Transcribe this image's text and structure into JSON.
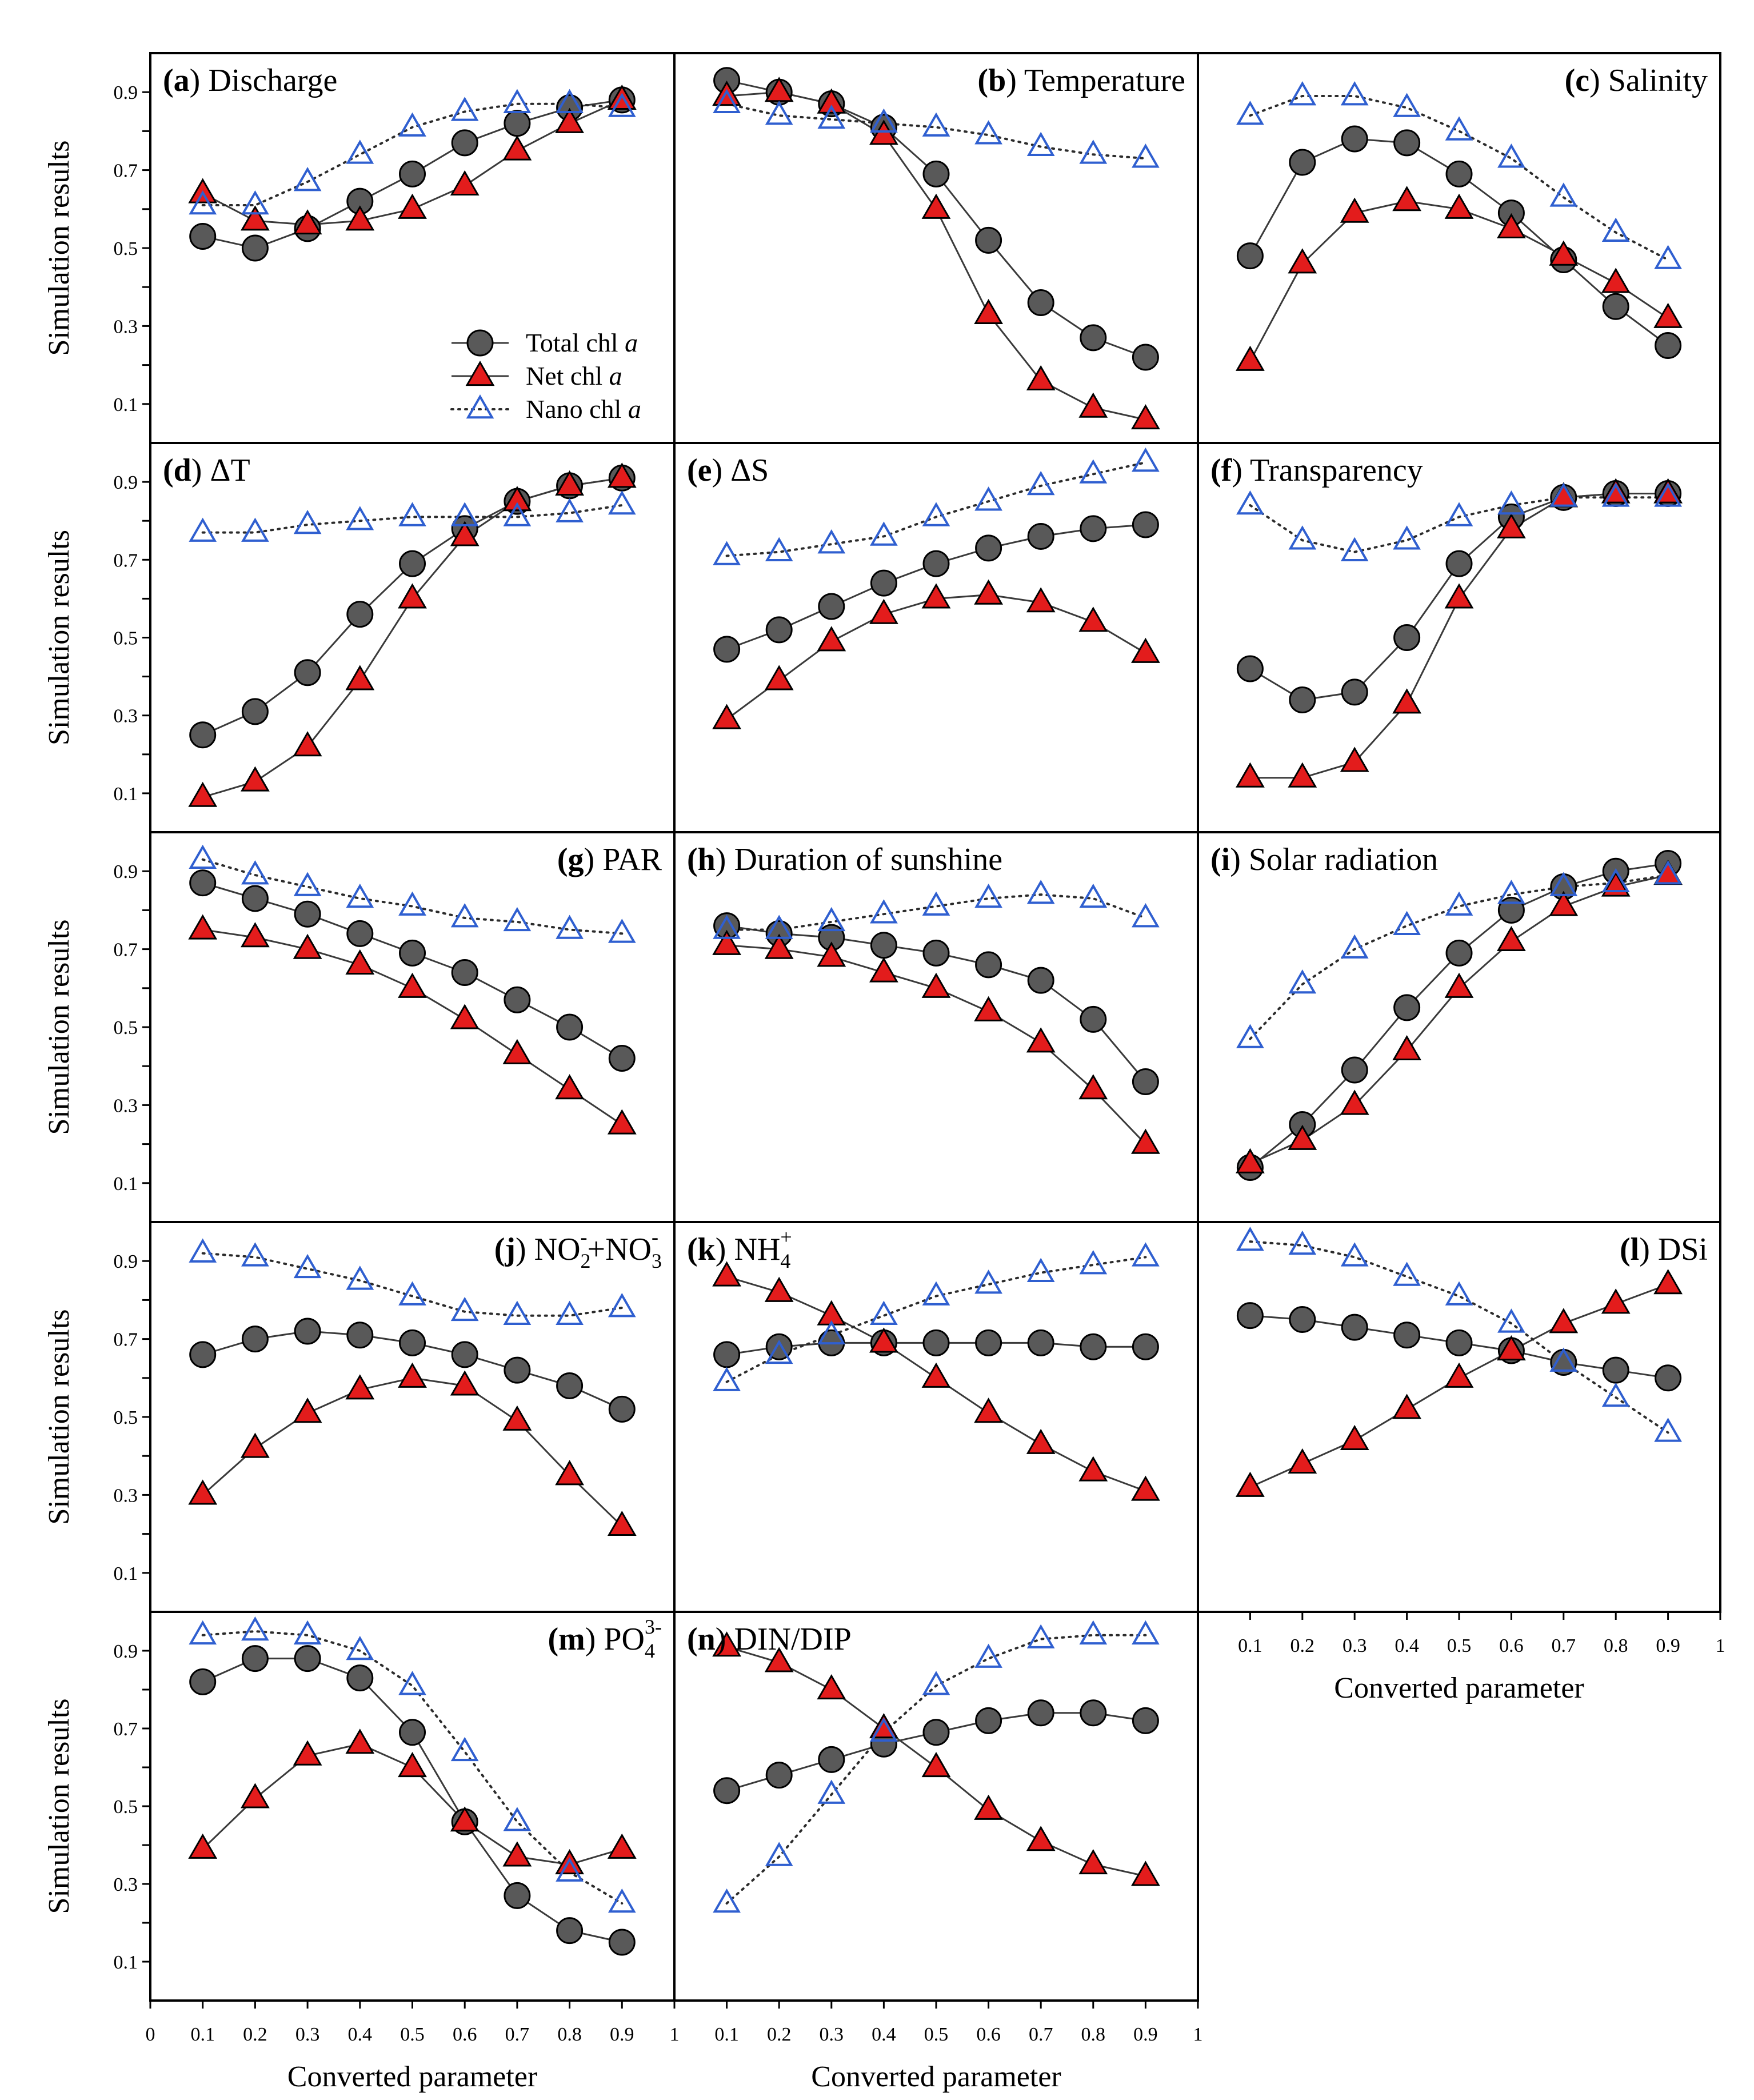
{
  "chart_data": {
    "type": "line",
    "x": [
      0.1,
      0.2,
      0.3,
      0.4,
      0.5,
      0.6,
      0.7,
      0.8,
      0.9
    ],
    "xlabel": "Converted parameter",
    "ylabel": "Simulation results",
    "xlim": [
      0,
      1
    ],
    "ylim": [
      0,
      1
    ],
    "xticks": [
      "0",
      "0.1",
      "0.2",
      "0.3",
      "0.4",
      "0.5",
      "0.6",
      "0.7",
      "0.8",
      "0.9",
      "1"
    ],
    "yticks": [
      "0.1",
      "0.3",
      "0.5",
      "0.7",
      "0.9"
    ],
    "legend": {
      "placement": "bottom-right of panel (a)",
      "entries": [
        {
          "key": "total",
          "prefix": "Total chl ",
          "italic": "a"
        },
        {
          "key": "net",
          "prefix": "Net chl ",
          "italic": "a"
        },
        {
          "key": "nano",
          "prefix": "Nano chl ",
          "italic": "a"
        }
      ]
    },
    "panels": [
      {
        "letter": "a",
        "name": "Discharge",
        "align": "left",
        "total": [
          0.53,
          0.5,
          0.55,
          0.62,
          0.69,
          0.77,
          0.82,
          0.86,
          0.88
        ],
        "net": [
          0.64,
          0.57,
          0.56,
          0.57,
          0.6,
          0.66,
          0.75,
          0.82,
          0.88
        ],
        "nano": [
          0.61,
          0.61,
          0.67,
          0.74,
          0.81,
          0.85,
          0.87,
          0.87,
          0.86
        ]
      },
      {
        "letter": "b",
        "name": "Temperature",
        "align": "right",
        "total": [
          0.93,
          0.9,
          0.87,
          0.81,
          0.69,
          0.52,
          0.36,
          0.27,
          0.22
        ],
        "net": [
          0.89,
          0.9,
          0.87,
          0.79,
          0.6,
          0.33,
          0.16,
          0.09,
          0.06
        ],
        "nano": [
          0.87,
          0.84,
          0.83,
          0.82,
          0.81,
          0.79,
          0.76,
          0.74,
          0.73
        ]
      },
      {
        "letter": "c",
        "name": "Salinity",
        "align": "right",
        "total": [
          0.48,
          0.72,
          0.78,
          0.77,
          0.69,
          0.59,
          0.47,
          0.35,
          0.25
        ],
        "net": [
          0.21,
          0.46,
          0.59,
          0.62,
          0.6,
          0.55,
          0.48,
          0.41,
          0.32
        ],
        "nano": [
          0.84,
          0.89,
          0.89,
          0.86,
          0.8,
          0.73,
          0.63,
          0.54,
          0.47
        ]
      },
      {
        "letter": "d",
        "name": "ΔT",
        "align": "left",
        "total": [
          0.25,
          0.31,
          0.41,
          0.56,
          0.69,
          0.78,
          0.85,
          0.89,
          0.91
        ],
        "net": [
          0.09,
          0.13,
          0.22,
          0.39,
          0.6,
          0.76,
          0.85,
          0.89,
          0.91
        ],
        "nano": [
          0.77,
          0.77,
          0.79,
          0.8,
          0.81,
          0.81,
          0.81,
          0.82,
          0.84
        ]
      },
      {
        "letter": "e",
        "name": "ΔS",
        "align": "left",
        "total": [
          0.47,
          0.52,
          0.58,
          0.64,
          0.69,
          0.73,
          0.76,
          0.78,
          0.79
        ],
        "net": [
          0.29,
          0.39,
          0.49,
          0.56,
          0.6,
          0.61,
          0.59,
          0.54,
          0.46
        ],
        "nano": [
          0.71,
          0.72,
          0.74,
          0.76,
          0.81,
          0.85,
          0.89,
          0.92,
          0.95
        ]
      },
      {
        "letter": "f",
        "name": "Transparency",
        "align": "left",
        "total": [
          0.42,
          0.34,
          0.36,
          0.5,
          0.69,
          0.81,
          0.86,
          0.87,
          0.87
        ],
        "net": [
          0.14,
          0.14,
          0.18,
          0.33,
          0.6,
          0.78,
          0.86,
          0.87,
          0.87
        ],
        "nano": [
          0.84,
          0.75,
          0.72,
          0.75,
          0.81,
          0.84,
          0.86,
          0.86,
          0.86
        ]
      },
      {
        "letter": "g",
        "name": "PAR",
        "align": "right",
        "total": [
          0.87,
          0.83,
          0.79,
          0.74,
          0.69,
          0.64,
          0.57,
          0.5,
          0.42
        ],
        "net": [
          0.75,
          0.73,
          0.7,
          0.66,
          0.6,
          0.52,
          0.43,
          0.34,
          0.25
        ],
        "nano": [
          0.93,
          0.89,
          0.86,
          0.83,
          0.81,
          0.78,
          0.77,
          0.75,
          0.74
        ]
      },
      {
        "letter": "h",
        "name": "Duration of sunshine",
        "align": "left",
        "total": [
          0.76,
          0.74,
          0.73,
          0.71,
          0.69,
          0.66,
          0.62,
          0.52,
          0.36
        ],
        "net": [
          0.71,
          0.7,
          0.68,
          0.64,
          0.6,
          0.54,
          0.46,
          0.34,
          0.2
        ],
        "nano": [
          0.75,
          0.75,
          0.77,
          0.79,
          0.81,
          0.83,
          0.84,
          0.83,
          0.78
        ]
      },
      {
        "letter": "i",
        "name": "Solar radiation",
        "align": "left",
        "total": [
          0.14,
          0.25,
          0.39,
          0.55,
          0.69,
          0.8,
          0.86,
          0.9,
          0.92
        ],
        "net": [
          0.15,
          0.21,
          0.3,
          0.44,
          0.6,
          0.72,
          0.81,
          0.86,
          0.89
        ],
        "nano": [
          0.47,
          0.61,
          0.7,
          0.76,
          0.81,
          0.84,
          0.86,
          0.87,
          0.89
        ]
      },
      {
        "letter": "j",
        "name": "NO2-+NO3-",
        "align": "right",
        "name_parts": [
          "NO",
          "2",
          "-",
          "+NO",
          "3",
          "-"
        ],
        "total": [
          0.66,
          0.7,
          0.72,
          0.71,
          0.69,
          0.66,
          0.62,
          0.58,
          0.52
        ],
        "net": [
          0.3,
          0.42,
          0.51,
          0.57,
          0.6,
          0.58,
          0.49,
          0.35,
          0.22
        ],
        "nano": [
          0.92,
          0.91,
          0.88,
          0.85,
          0.81,
          0.77,
          0.76,
          0.76,
          0.78
        ]
      },
      {
        "letter": "k",
        "name": "NH4+",
        "align": "left",
        "name_parts": [
          "NH",
          "4",
          "+"
        ],
        "total": [
          0.66,
          0.68,
          0.69,
          0.69,
          0.69,
          0.69,
          0.69,
          0.68,
          0.68
        ],
        "net": [
          0.86,
          0.82,
          0.76,
          0.69,
          0.6,
          0.51,
          0.43,
          0.36,
          0.31
        ],
        "nano": [
          0.59,
          0.66,
          0.71,
          0.76,
          0.81,
          0.84,
          0.87,
          0.89,
          0.91
        ]
      },
      {
        "letter": "l",
        "name": "DSi",
        "align": "right",
        "total": [
          0.76,
          0.75,
          0.73,
          0.71,
          0.69,
          0.67,
          0.64,
          0.62,
          0.6
        ],
        "net": [
          0.32,
          0.38,
          0.44,
          0.52,
          0.6,
          0.67,
          0.74,
          0.79,
          0.84
        ],
        "nano": [
          0.95,
          0.94,
          0.91,
          0.86,
          0.81,
          0.74,
          0.64,
          0.55,
          0.46
        ]
      },
      {
        "letter": "m",
        "name": "PO43-",
        "align": "right",
        "name_parts": [
          "PO",
          "4",
          "3-"
        ],
        "total": [
          0.82,
          0.88,
          0.88,
          0.83,
          0.69,
          0.46,
          0.27,
          0.18,
          0.15
        ],
        "net": [
          0.39,
          0.52,
          0.63,
          0.66,
          0.6,
          0.46,
          0.37,
          0.35,
          0.39
        ],
        "nano": [
          0.94,
          0.95,
          0.94,
          0.9,
          0.81,
          0.64,
          0.46,
          0.33,
          0.25
        ]
      },
      {
        "letter": "n",
        "name": "DIN/DIP",
        "align": "left",
        "total": [
          0.54,
          0.58,
          0.62,
          0.66,
          0.69,
          0.72,
          0.74,
          0.74,
          0.72
        ],
        "net": [
          0.91,
          0.87,
          0.8,
          0.7,
          0.6,
          0.49,
          0.41,
          0.35,
          0.32
        ],
        "nano": [
          0.25,
          0.37,
          0.53,
          0.69,
          0.81,
          0.88,
          0.93,
          0.94,
          0.94
        ]
      }
    ]
  }
}
